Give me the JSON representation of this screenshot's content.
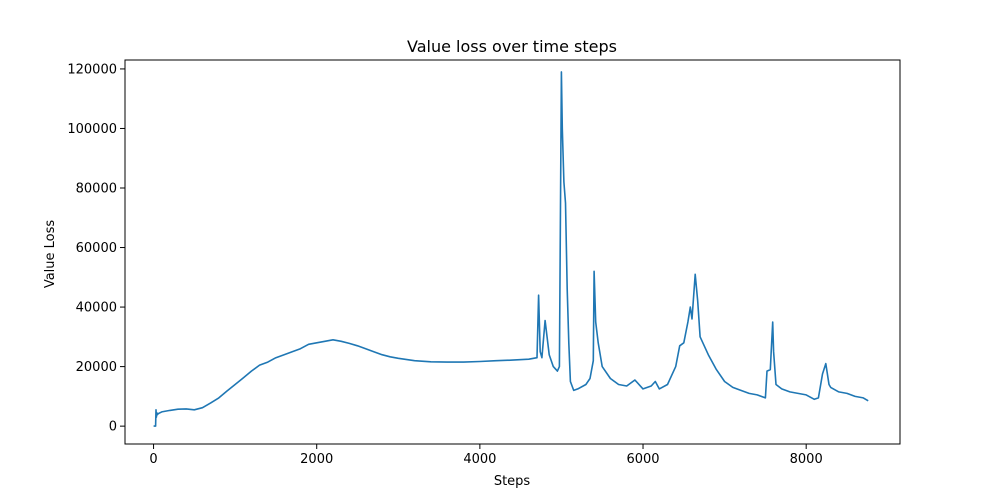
{
  "chart_data": {
    "type": "line",
    "title": "Value loss over time steps",
    "xlabel": "Steps",
    "ylabel": "Value Loss",
    "xlim": [
      -350,
      9150
    ],
    "ylim": [
      -6000,
      123000
    ],
    "xticks": [
      0,
      2000,
      4000,
      6000,
      8000
    ],
    "xtick_labels": [
      "0",
      "2000",
      "4000",
      "6000",
      "8000"
    ],
    "yticks": [
      0,
      20000,
      40000,
      60000,
      80000,
      100000,
      120000
    ],
    "ytick_labels": [
      "0",
      "20000",
      "40000",
      "60000",
      "80000",
      "100000",
      "120000"
    ],
    "grid": false,
    "series": [
      {
        "color": "#1f77b4",
        "x": [
          0,
          25,
          30,
          35,
          40,
          45,
          60,
          100,
          200,
          300,
          400,
          500,
          600,
          700,
          800,
          900,
          1000,
          1100,
          1200,
          1300,
          1400,
          1500,
          1600,
          1700,
          1800,
          1900,
          2000,
          2100,
          2200,
          2300,
          2400,
          2500,
          2600,
          2700,
          2800,
          2900,
          3000,
          3200,
          3400,
          3600,
          3800,
          4000,
          4200,
          4400,
          4600,
          4700,
          4720,
          4740,
          4760,
          4800,
          4850,
          4900,
          4950,
          4975,
          5000,
          5010,
          5030,
          5050,
          5070,
          5090,
          5110,
          5150,
          5200,
          5300,
          5350,
          5390,
          5400,
          5420,
          5450,
          5500,
          5600,
          5700,
          5800,
          5900,
          6000,
          6100,
          6150,
          6200,
          6300,
          6400,
          6450,
          6500,
          6550,
          6580,
          6600,
          6640,
          6670,
          6700,
          6800,
          6900,
          7000,
          7100,
          7200,
          7300,
          7400,
          7500,
          7520,
          7560,
          7590,
          7600,
          7630,
          7700,
          7800,
          7900,
          8000,
          8100,
          8150,
          8200,
          8240,
          8280,
          8300,
          8400,
          8500,
          8600,
          8700,
          8760
        ],
        "y": [
          0,
          0,
          5500,
          3000,
          4500,
          3800,
          4200,
          4800,
          5300,
          5700,
          5800,
          5500,
          6200,
          7800,
          9500,
          11800,
          14000,
          16200,
          18500,
          20500,
          21500,
          23000,
          24000,
          25000,
          26000,
          27500,
          28000,
          28500,
          29000,
          28500,
          27800,
          27000,
          26000,
          25000,
          24000,
          23300,
          22800,
          22000,
          21600,
          21500,
          21500,
          21700,
          22000,
          22200,
          22500,
          23000,
          44000,
          25000,
          23000,
          35500,
          24000,
          20000,
          18500,
          20000,
          119000,
          100000,
          82000,
          75000,
          46000,
          28000,
          15000,
          12000,
          12500,
          14000,
          16000,
          22000,
          52000,
          35000,
          28000,
          20000,
          16000,
          14000,
          13500,
          15500,
          12500,
          13500,
          15000,
          12500,
          14000,
          20000,
          27000,
          28000,
          35000,
          40000,
          36000,
          51000,
          42000,
          30000,
          24000,
          19000,
          15000,
          13000,
          12000,
          11000,
          10500,
          9500,
          18500,
          19000,
          35000,
          25000,
          14000,
          12500,
          11500,
          11000,
          10500,
          9000,
          9500,
          17500,
          21000,
          14000,
          13000,
          11500,
          11000,
          10000,
          9500,
          8500
        ]
      }
    ]
  }
}
